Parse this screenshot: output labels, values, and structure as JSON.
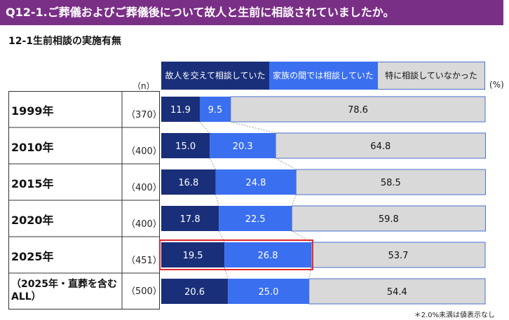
{
  "header": {
    "title": "Q12-1.ご葬儀およびご葬儀後について故人と生前に相談されていましたか。",
    "subtitle": "12-1生前相談の実施有無"
  },
  "units": {
    "n_label": "（n）",
    "pct_label": "(%)"
  },
  "note": "＊2.0%未満は値表示なし",
  "colors": {
    "dark_navy": "#1a2f7a",
    "blue": "#3a6ff0",
    "gray": "#d9d9d9",
    "title_purple": "#7a2f86",
    "highlight_red": "#e0262b"
  },
  "chart_data": {
    "type": "bar",
    "orientation": "horizontal-stacked-100",
    "categories": [
      "1999年",
      "2010年",
      "2015年",
      "2020年",
      "2025年",
      "（2025年・直葬を含むALL）"
    ],
    "n": [
      "（370）",
      "（400）",
      "（400）",
      "（400）",
      "（451）",
      "（500）"
    ],
    "series": [
      {
        "name": "故人を交えて相談していた",
        "color": "#1a2f7a",
        "values": [
          11.9,
          15.0,
          16.8,
          17.8,
          19.5,
          20.6
        ]
      },
      {
        "name": "家族の間では相談していた",
        "color": "#3a6ff0",
        "values": [
          9.5,
          20.3,
          24.8,
          22.5,
          26.8,
          25.0
        ]
      },
      {
        "name": "特に相談していなかった",
        "color": "#d9d9d9",
        "values": [
          78.6,
          64.8,
          58.5,
          59.8,
          53.7,
          54.4
        ]
      }
    ],
    "xlim": [
      0,
      100
    ],
    "highlight": {
      "category": "2025年",
      "series": [
        "故人を交えて相談していた",
        "家族の間では相談していた"
      ]
    }
  }
}
